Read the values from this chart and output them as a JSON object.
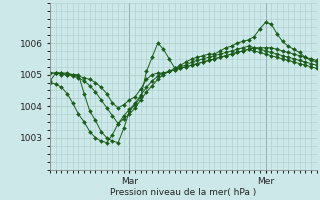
{
  "xlabel": "Pression niveau de la mer( hPa )",
  "ylim": [
    1002.3,
    1006.8
  ],
  "xlim": [
    0,
    47
  ],
  "yticks": [
    1003,
    1004,
    1005,
    1006
  ],
  "mar_x": 14,
  "mer_x": 38,
  "xticks_labels": [
    "Mar",
    "Mer"
  ],
  "bg_color": "#cce8e8",
  "grid_color": "#aacccc",
  "line_color": "#1a5c1a",
  "markersize": 2.0,
  "series": [
    [
      1004.8,
      1005.05,
      1005.05,
      1005.05,
      1005.0,
      1005.0,
      1004.4,
      1003.85,
      1003.55,
      1003.2,
      1003.0,
      1002.9,
      1002.85,
      1003.3,
      1003.85,
      1004.05,
      1004.3,
      1005.1,
      1005.55,
      1006.0,
      1005.8,
      1005.5,
      1005.2,
      1005.3,
      1005.4,
      1005.5,
      1005.55,
      1005.6,
      1005.65,
      1005.65,
      1005.75,
      1005.85,
      1005.9,
      1006.0,
      1006.05,
      1006.1,
      1006.2,
      1006.45,
      1006.65,
      1006.6,
      1006.3,
      1006.05,
      1005.9,
      1005.8,
      1005.7,
      1005.55,
      1005.45,
      1005.4
    ],
    [
      1005.05,
      1005.05,
      1005.05,
      1005.0,
      1005.0,
      1004.95,
      1004.9,
      1004.85,
      1004.75,
      1004.6,
      1004.4,
      1004.1,
      1003.95,
      1004.05,
      1004.2,
      1004.3,
      1004.55,
      1004.85,
      1005.0,
      1005.05,
      1005.05,
      1005.1,
      1005.15,
      1005.2,
      1005.25,
      1005.3,
      1005.35,
      1005.4,
      1005.45,
      1005.5,
      1005.55,
      1005.6,
      1005.65,
      1005.7,
      1005.75,
      1005.8,
      1005.85,
      1005.85,
      1005.85,
      1005.85,
      1005.8,
      1005.75,
      1005.7,
      1005.65,
      1005.6,
      1005.55,
      1005.5,
      1005.45
    ],
    [
      1005.05,
      1005.05,
      1005.0,
      1005.0,
      1004.95,
      1004.9,
      1004.8,
      1004.65,
      1004.45,
      1004.2,
      1003.95,
      1003.7,
      1003.45,
      1003.6,
      1003.75,
      1003.95,
      1004.2,
      1004.45,
      1004.65,
      1004.85,
      1005.0,
      1005.1,
      1005.2,
      1005.25,
      1005.3,
      1005.4,
      1005.45,
      1005.5,
      1005.55,
      1005.6,
      1005.65,
      1005.7,
      1005.75,
      1005.8,
      1005.85,
      1005.9,
      1005.85,
      1005.8,
      1005.75,
      1005.7,
      1005.65,
      1005.6,
      1005.55,
      1005.5,
      1005.45,
      1005.4,
      1005.35,
      1005.3
    ],
    [
      1004.75,
      1004.7,
      1004.6,
      1004.4,
      1004.1,
      1003.75,
      1003.5,
      1003.2,
      1003.0,
      1002.9,
      1002.85,
      1003.1,
      1003.45,
      1003.7,
      1003.9,
      1004.1,
      1004.35,
      1004.6,
      1004.8,
      1004.95,
      1005.05,
      1005.1,
      1005.15,
      1005.2,
      1005.25,
      1005.3,
      1005.35,
      1005.4,
      1005.45,
      1005.5,
      1005.55,
      1005.6,
      1005.65,
      1005.7,
      1005.75,
      1005.8,
      1005.75,
      1005.7,
      1005.65,
      1005.6,
      1005.55,
      1005.5,
      1005.45,
      1005.4,
      1005.35,
      1005.3,
      1005.25,
      1005.2
    ]
  ]
}
